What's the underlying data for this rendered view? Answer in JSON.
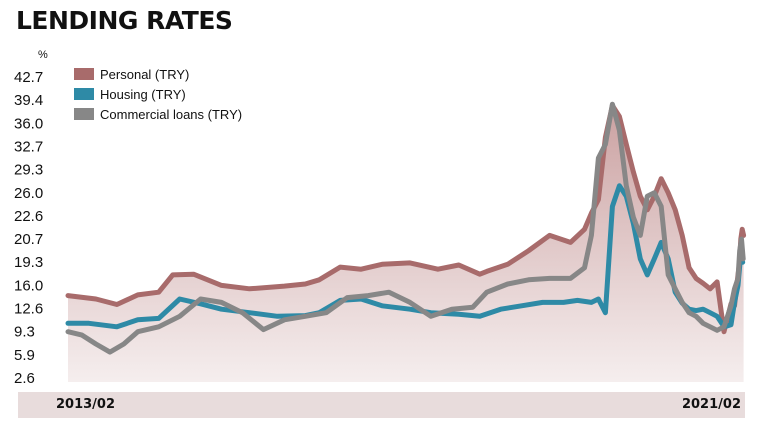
{
  "chart_data": {
    "type": "line",
    "title": "LENDING RATES",
    "ylabel": "%",
    "ylim": [
      2.6,
      42.7
    ],
    "yticks": [
      "42.7",
      "39.4",
      "36.0",
      "32.7",
      "29.3",
      "26.0",
      "22.6",
      "20.7",
      "19.3",
      "16.0",
      "12.6",
      "9.3",
      "5.9",
      "2.6"
    ],
    "x_start_label": "2013/02",
    "x_end_label": "2021/02",
    "x_range": [
      "2013-02",
      "2021-02"
    ],
    "legend_position": "top-left",
    "grid": false,
    "series": [
      {
        "name": "Personal (TRY)",
        "color": "#a86b6b",
        "values": [
          [
            "2013-02",
            14.5
          ],
          [
            "2013-06",
            14.0
          ],
          [
            "2013-09",
            13.2
          ],
          [
            "2013-12",
            14.6
          ],
          [
            "2014-03",
            15.0
          ],
          [
            "2014-05",
            17.5
          ],
          [
            "2014-08",
            17.6
          ],
          [
            "2014-12",
            16.0
          ],
          [
            "2015-04",
            15.5
          ],
          [
            "2015-09",
            15.9
          ],
          [
            "2015-12",
            16.2
          ],
          [
            "2016-02",
            16.8
          ],
          [
            "2016-05",
            18.6
          ],
          [
            "2016-08",
            18.3
          ],
          [
            "2016-11",
            19.0
          ],
          [
            "2017-03",
            19.2
          ],
          [
            "2017-07",
            18.3
          ],
          [
            "2017-10",
            18.9
          ],
          [
            "2018-01",
            17.6
          ],
          [
            "2018-02",
            18.0
          ],
          [
            "2018-05",
            19.0
          ],
          [
            "2018-08",
            20.0
          ],
          [
            "2018-11",
            21.0
          ],
          [
            "2019-02",
            20.5
          ],
          [
            "2019-04",
            21.5
          ],
          [
            "2019-05",
            23.0
          ],
          [
            "2019-06",
            25.0
          ],
          [
            "2019-07",
            34.0
          ],
          [
            "2019-08",
            38.6
          ],
          [
            "2019-09",
            37.0
          ],
          [
            "2019-10",
            33.0
          ],
          [
            "2019-11",
            29.0
          ],
          [
            "2019-12",
            25.5
          ],
          [
            "2020-01",
            23.5
          ],
          [
            "2020-02",
            25.5
          ],
          [
            "2020-03",
            28.0
          ],
          [
            "2020-04",
            26.0
          ],
          [
            "2020-05",
            23.5
          ],
          [
            "2020-06",
            21.0
          ],
          [
            "2020-07",
            18.5
          ],
          [
            "2020-08",
            17.0
          ],
          [
            "2020-09",
            16.3
          ],
          [
            "2020-10",
            15.5
          ],
          [
            "2020-11",
            16.5
          ],
          [
            "2020-12",
            9.3
          ],
          [
            "2021-01",
            13.3
          ],
          [
            "2021-01",
            13.0
          ],
          [
            "2021-02",
            17.5
          ],
          [
            "2021-02",
            19.0
          ],
          [
            "2021-02",
            20.7
          ],
          [
            "2021-02",
            21.5
          ],
          [
            "2021-02",
            21.0
          ]
        ]
      },
      {
        "name": "Housing (TRY)",
        "color": "#2e8aa6",
        "values": [
          [
            "2013-02",
            10.5
          ],
          [
            "2013-05",
            10.5
          ],
          [
            "2013-09",
            10.0
          ],
          [
            "2013-12",
            11.0
          ],
          [
            "2014-03",
            11.2
          ],
          [
            "2014-06",
            14.0
          ],
          [
            "2014-09",
            13.3
          ],
          [
            "2014-12",
            12.5
          ],
          [
            "2015-04",
            12.0
          ],
          [
            "2015-08",
            11.5
          ],
          [
            "2015-12",
            11.6
          ],
          [
            "2016-02",
            12.0
          ],
          [
            "2016-05",
            13.8
          ],
          [
            "2016-08",
            14.0
          ],
          [
            "2016-11",
            13.0
          ],
          [
            "2017-03",
            12.5
          ],
          [
            "2017-06",
            12.0
          ],
          [
            "2017-10",
            11.8
          ],
          [
            "2018-01",
            11.5
          ],
          [
            "2018-04",
            12.5
          ],
          [
            "2018-07",
            13.0
          ],
          [
            "2018-10",
            13.5
          ],
          [
            "2019-01",
            13.5
          ],
          [
            "2019-03",
            13.8
          ],
          [
            "2019-05",
            13.5
          ],
          [
            "2019-06",
            14.0
          ],
          [
            "2019-07",
            12.0
          ],
          [
            "2019-08",
            24.0
          ],
          [
            "2019-09",
            27.0
          ],
          [
            "2019-10",
            25.5
          ],
          [
            "2019-11",
            22.0
          ],
          [
            "2019-12",
            19.5
          ],
          [
            "2020-01",
            17.5
          ],
          [
            "2020-02",
            19.5
          ],
          [
            "2020-03",
            20.5
          ],
          [
            "2020-04",
            19.5
          ],
          [
            "2020-05",
            15.0
          ],
          [
            "2020-06",
            13.4
          ],
          [
            "2020-07",
            12.5
          ],
          [
            "2020-08",
            12.3
          ],
          [
            "2020-09",
            12.5
          ],
          [
            "2020-10",
            12.0
          ],
          [
            "2020-11",
            11.5
          ],
          [
            "2020-12",
            10.0
          ],
          [
            "2021-01",
            10.3
          ],
          [
            "2021-01",
            13.5
          ],
          [
            "2021-02",
            16.0
          ],
          [
            "2021-02",
            19.5
          ],
          [
            "2021-02",
            19.3
          ]
        ]
      },
      {
        "name": "Commercial loans (TRY)",
        "color": "#878787",
        "values": [
          [
            "2013-02",
            9.3
          ],
          [
            "2013-04",
            8.8
          ],
          [
            "2013-06",
            7.5
          ],
          [
            "2013-08",
            6.3
          ],
          [
            "2013-10",
            7.5
          ],
          [
            "2013-12",
            9.3
          ],
          [
            "2014-03",
            10.0
          ],
          [
            "2014-06",
            11.5
          ],
          [
            "2014-09",
            14.0
          ],
          [
            "2014-12",
            13.5
          ],
          [
            "2015-03",
            12.0
          ],
          [
            "2015-06",
            9.6
          ],
          [
            "2015-09",
            11.0
          ],
          [
            "2015-12",
            11.5
          ],
          [
            "2016-03",
            12.0
          ],
          [
            "2016-06",
            14.2
          ],
          [
            "2016-09",
            14.5
          ],
          [
            "2016-12",
            15.0
          ],
          [
            "2017-03",
            13.5
          ],
          [
            "2017-06",
            11.5
          ],
          [
            "2017-09",
            12.5
          ],
          [
            "2017-12",
            12.8
          ],
          [
            "2018-02",
            15.0
          ],
          [
            "2018-05",
            16.2
          ],
          [
            "2018-08",
            16.8
          ],
          [
            "2018-11",
            17.0
          ],
          [
            "2019-02",
            17.0
          ],
          [
            "2019-04",
            18.5
          ],
          [
            "2019-05",
            21.0
          ],
          [
            "2019-06",
            31.0
          ],
          [
            "2019-07",
            33.0
          ],
          [
            "2019-08",
            38.8
          ],
          [
            "2019-09",
            35.0
          ],
          [
            "2019-10",
            27.0
          ],
          [
            "2019-11",
            22.5
          ],
          [
            "2019-12",
            21.0
          ],
          [
            "2020-01",
            25.5
          ],
          [
            "2020-02",
            26.0
          ],
          [
            "2020-03",
            24.0
          ],
          [
            "2020-04",
            17.5
          ],
          [
            "2020-05",
            15.5
          ],
          [
            "2020-06",
            13.5
          ],
          [
            "2020-07",
            12.0
          ],
          [
            "2020-08",
            11.5
          ],
          [
            "2020-09",
            10.5
          ],
          [
            "2020-10",
            10.0
          ],
          [
            "2020-11",
            9.5
          ],
          [
            "2020-12",
            10.0
          ],
          [
            "2021-01",
            13.0
          ],
          [
            "2021-01",
            15.5
          ],
          [
            "2021-02",
            17.0
          ],
          [
            "2021-02",
            20.0
          ],
          [
            "2021-02",
            20.7
          ],
          [
            "2021-02",
            19.5
          ]
        ]
      }
    ]
  }
}
